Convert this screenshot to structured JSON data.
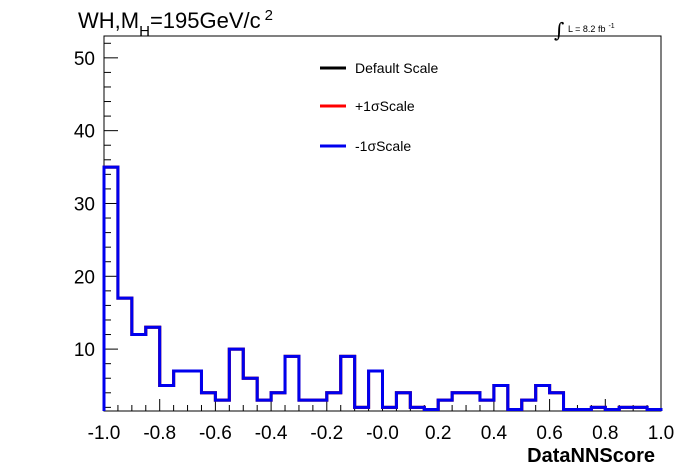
{
  "chart_data": {
    "type": "line",
    "style": "step-histogram",
    "title": {
      "main": "WH,M",
      "sub": "H",
      "rest": "=195GeV/c",
      "sup": "2"
    },
    "lumi": {
      "symbol": "∫",
      "text": "L = 8.2 fb",
      "sup": "-1"
    },
    "xlabel": "DataNNScore",
    "ylabel": "",
    "xlim": [
      -1.0,
      1.0
    ],
    "ylim": [
      1.5,
      53
    ],
    "xticks": [
      -1.0,
      -0.8,
      -0.6,
      -0.4,
      -0.2,
      0.0,
      0.2,
      0.4,
      0.6,
      0.8,
      1.0
    ],
    "xtick_labels": [
      "-1.0",
      "-0.8",
      "-0.6",
      "-0.4",
      "-0.2",
      "-0.0",
      "0.2",
      "0.4",
      "0.6",
      "0.8",
      "1.0"
    ],
    "yticks": [
      10,
      20,
      30,
      40,
      50
    ],
    "ytick_labels": [
      "10",
      "20",
      "30",
      "40",
      "50"
    ],
    "legend_position": "top-center",
    "bin_edges": [
      -1.0,
      -0.95,
      -0.9,
      -0.85,
      -0.8,
      -0.75,
      -0.7,
      -0.65,
      -0.6,
      -0.55,
      -0.5,
      -0.45,
      -0.4,
      -0.35,
      -0.3,
      -0.25,
      -0.2,
      -0.15,
      -0.1,
      -0.05,
      0.0,
      0.05,
      0.1,
      0.15,
      0.2,
      0.25,
      0.3,
      0.35,
      0.4,
      0.45,
      0.5,
      0.55,
      0.6,
      0.65,
      0.7,
      0.75,
      0.8,
      0.85,
      0.9,
      0.95,
      1.0
    ],
    "series": [
      {
        "name": "Default Scale",
        "color": "#000000",
        "values": [
          35,
          17,
          12,
          13,
          5,
          7,
          7,
          4,
          3,
          10,
          6,
          3,
          4,
          9,
          3,
          3,
          4,
          9,
          2,
          7,
          2,
          4,
          2,
          1.7,
          3,
          4,
          4,
          3,
          5,
          1.7,
          3,
          5,
          4,
          1.7,
          1.7,
          2,
          1.7,
          2,
          2,
          1.7
        ]
      },
      {
        "name": "+1σScale",
        "color": "#ff0000",
        "values": [
          35,
          17,
          12,
          13,
          5,
          7,
          7,
          4,
          3,
          10,
          6,
          3,
          4,
          9,
          3,
          3,
          4,
          9,
          2,
          7,
          2,
          4,
          2,
          1.7,
          3,
          4,
          4,
          3,
          5,
          1.7,
          3,
          5,
          4,
          1.7,
          1.7,
          2,
          1.7,
          2,
          2,
          1.7
        ]
      },
      {
        "name": "-1σScale",
        "color": "#0000ee",
        "values": [
          35,
          17,
          12,
          13,
          5,
          7,
          7,
          4,
          3,
          10,
          6,
          3,
          4,
          9,
          3,
          3,
          4,
          9,
          2,
          7,
          2,
          4,
          2,
          1.7,
          3,
          4,
          4,
          3,
          5,
          1.7,
          3,
          5,
          4,
          1.7,
          1.7,
          2,
          1.7,
          2,
          2,
          1.7
        ]
      }
    ]
  }
}
